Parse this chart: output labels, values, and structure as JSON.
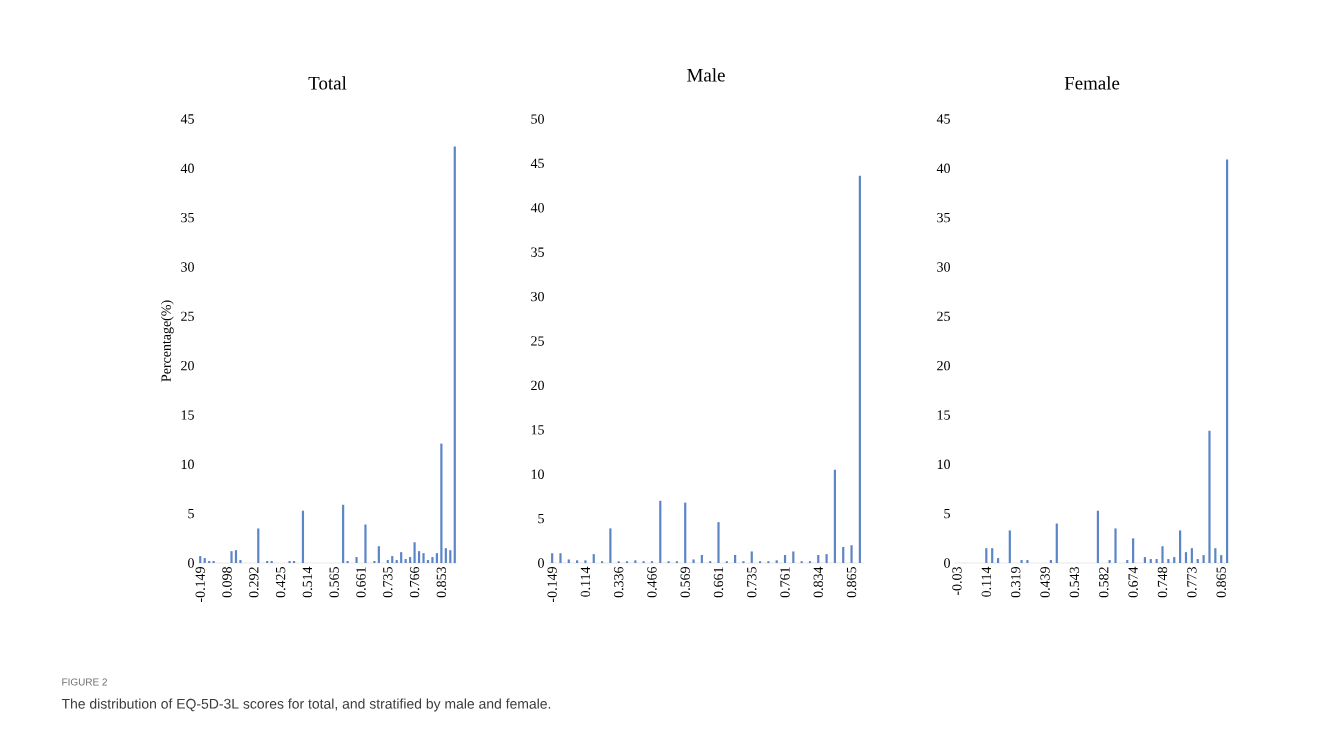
{
  "chart_data": [
    {
      "type": "bar",
      "title": "Total",
      "ylabel": "Percentage(%)",
      "color": "#5b85c6",
      "categories": [
        "-0.149",
        null,
        null,
        null,
        null,
        null,
        "0.098",
        null,
        null,
        null,
        null,
        null,
        "0.292",
        null,
        null,
        null,
        null,
        null,
        "0.425",
        null,
        null,
        null,
        null,
        null,
        "0.514",
        null,
        null,
        null,
        null,
        null,
        "0.565",
        null,
        null,
        null,
        null,
        null,
        "0.661",
        null,
        null,
        null,
        null,
        null,
        "0.735",
        null,
        null,
        null,
        null,
        null,
        "0.766",
        null,
        null,
        null,
        null,
        null,
        "0.853",
        null,
        null,
        null
      ],
      "values": [
        0.7,
        0.5,
        0.2,
        0.2,
        0,
        0,
        0,
        1.2,
        1.3,
        0.3,
        0,
        0,
        0,
        3.5,
        0,
        0.2,
        0.2,
        0,
        0,
        0,
        0.2,
        0.2,
        0,
        5.3,
        0,
        0,
        0,
        0,
        0,
        0,
        0,
        0,
        5.9,
        0.2,
        0,
        0.6,
        0,
        3.9,
        0,
        0.2,
        1.7,
        0,
        0.3,
        0.7,
        0.3,
        1.1,
        0.4,
        0.6,
        2.1,
        1.2,
        1.0,
        0.3,
        0.6,
        1.0,
        12.1,
        1.5,
        1.3,
        42.2
      ],
      "ylim": [
        0,
        45
      ],
      "yticks": [
        0,
        5,
        10,
        15,
        20,
        25,
        30,
        35,
        40,
        45
      ],
      "annotations": [
        "FIGURE 2",
        "The distribution of EQ-5D-3L scores for total, and stratified by male and female."
      ]
    },
    {
      "type": "bar",
      "title": "Male",
      "color": "#5b85c6",
      "categories": [
        "-0.149",
        null,
        null,
        null,
        "0.114",
        null,
        null,
        null,
        "0.336",
        null,
        null,
        null,
        "0.466",
        null,
        null,
        null,
        "0.569",
        null,
        null,
        null,
        "0.661",
        null,
        null,
        null,
        "0.735",
        null,
        null,
        null,
        "0.761",
        null,
        null,
        null,
        "0.834",
        null,
        null,
        null,
        "0.865",
        null
      ],
      "values": [
        1.1,
        1.1,
        0.4,
        0.3,
        0.3,
        1.0,
        0.2,
        3.9,
        0.2,
        0.2,
        0.3,
        0.2,
        0.2,
        7.0,
        0.2,
        0.2,
        6.8,
        0.4,
        0.9,
        0.2,
        4.6,
        0.2,
        0.9,
        0.2,
        1.3,
        0.2,
        0.2,
        0.3,
        0.9,
        1.3,
        0.2,
        0.2,
        0.9,
        1.0,
        10.5,
        1.8,
        2.0,
        43.6
      ],
      "ylim": [
        0,
        50
      ],
      "yticks": [
        0,
        5,
        10,
        15,
        20,
        25,
        30,
        35,
        40,
        45,
        50
      ]
    },
    {
      "type": "bar",
      "title": "Female",
      "color": "#5b85c6",
      "categories": [
        "-0.03",
        null,
        null,
        null,
        null,
        "0.114",
        null,
        null,
        null,
        null,
        "0.319",
        null,
        null,
        null,
        null,
        "0.439",
        null,
        null,
        null,
        null,
        "0.543",
        null,
        null,
        null,
        null,
        "0.582",
        null,
        null,
        null,
        null,
        "0.674",
        null,
        null,
        null,
        null,
        "0.748",
        null,
        null,
        null,
        null,
        "0.773",
        null,
        null,
        null,
        null,
        "0.865",
        null
      ],
      "values": [
        0,
        0,
        0,
        0,
        0,
        1.5,
        1.5,
        0.5,
        0,
        3.3,
        0,
        0.3,
        0.3,
        0,
        0,
        0,
        0.3,
        4.0,
        0,
        0,
        0,
        0,
        0,
        0,
        5.3,
        0,
        0.3,
        3.5,
        0,
        0.3,
        2.5,
        0,
        0.6,
        0.4,
        0.4,
        1.7,
        0.4,
        0.6,
        3.3,
        1.1,
        1.5,
        0.4,
        0.8,
        13.4,
        1.5,
        0.8,
        40.9
      ],
      "ylim": [
        0,
        45
      ],
      "yticks": [
        0,
        5,
        10,
        15,
        20,
        25,
        30,
        35,
        40,
        45
      ]
    }
  ]
}
